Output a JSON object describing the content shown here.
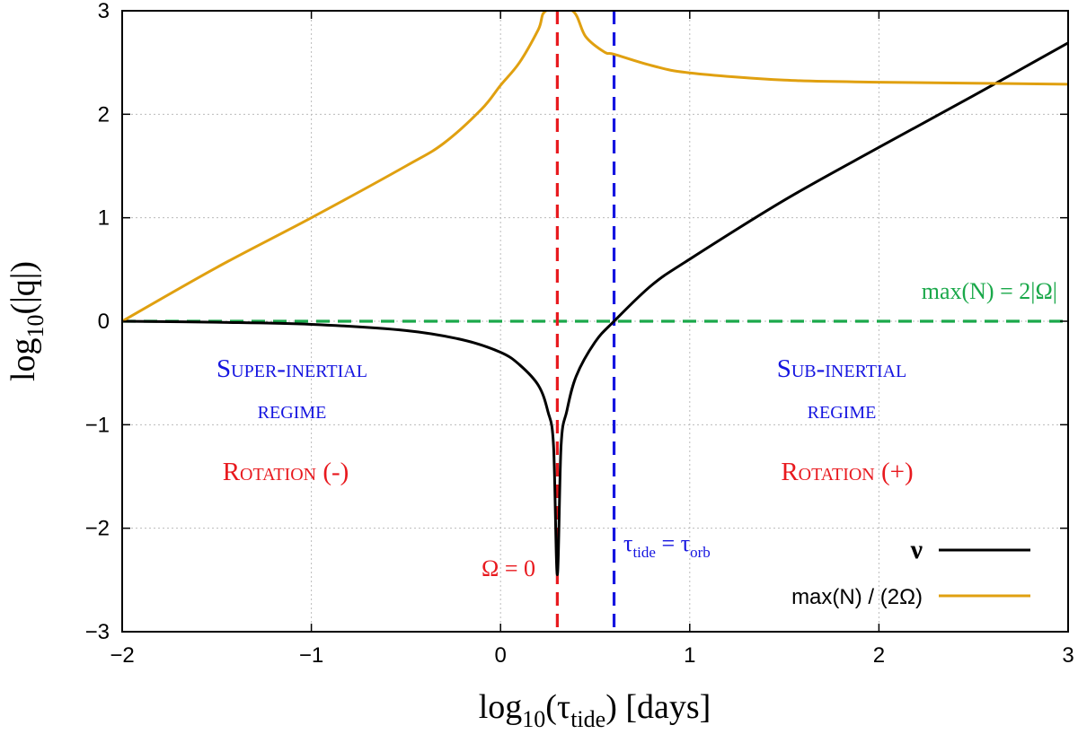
{
  "chart_data": {
    "type": "line",
    "title": "",
    "xlabel": {
      "base": "log",
      "sub": "10",
      "mid": "(τ",
      "sub2": "tide",
      "tail": ") [days]"
    },
    "ylabel": {
      "base": "log",
      "sub": "10",
      "tail": "(|q|)"
    },
    "xlim": [
      -2,
      3
    ],
    "ylim": [
      -3,
      3
    ],
    "xticks": [
      -2,
      -1,
      0,
      1,
      2,
      3
    ],
    "yticks": [
      -3,
      -2,
      -1,
      0,
      1,
      2,
      3
    ],
    "xtick_labels": [
      "−2",
      "−1",
      "0",
      "1",
      "2",
      "3"
    ],
    "ytick_labels": [
      "−3",
      "−2",
      "−1",
      "0",
      "1",
      "2",
      "3"
    ],
    "grid": true,
    "legend_position": "bottom-right",
    "series": [
      {
        "name": "ν",
        "color": "#000000",
        "x": [
          -2.0,
          -1.5,
          -1.0,
          -0.5,
          -0.2,
          0.0,
          0.1,
          0.2,
          0.25,
          0.28,
          0.3,
          0.32,
          0.35,
          0.4,
          0.5,
          0.6,
          0.8,
          1.0,
          1.5,
          2.0,
          2.5,
          3.0
        ],
        "y": [
          0.0,
          -0.01,
          -0.03,
          -0.09,
          -0.18,
          -0.3,
          -0.42,
          -0.62,
          -0.87,
          -1.2,
          -2.45,
          -1.2,
          -0.87,
          -0.53,
          -0.2,
          0.0,
          0.35,
          0.6,
          1.17,
          1.68,
          2.18,
          2.69
        ]
      },
      {
        "name": "max(N) / (2Ω)",
        "color": "#E0A010",
        "x": [
          -2.0,
          -1.5,
          -1.0,
          -0.5,
          -0.3,
          -0.1,
          0.0,
          0.1,
          0.2,
          0.24,
          0.38,
          0.45,
          0.55,
          0.6,
          0.8,
          1.0,
          1.5,
          2.0,
          2.5,
          3.0
        ],
        "y": [
          0.0,
          0.52,
          1.0,
          1.5,
          1.72,
          2.05,
          2.28,
          2.5,
          2.82,
          3.0,
          3.0,
          2.75,
          2.6,
          2.58,
          2.47,
          2.4,
          2.33,
          2.31,
          2.3,
          2.29
        ]
      }
    ],
    "reference_lines": [
      {
        "orientation": "horizontal",
        "value": 0.0,
        "color": "#1AA84A",
        "label": "max(N) = 2|Ω|"
      },
      {
        "orientation": "vertical",
        "value": 0.3,
        "color": "#E8191E",
        "label": "Ω = 0"
      },
      {
        "orientation": "vertical",
        "value": 0.6,
        "color": "#1515E0",
        "label_main": "τ",
        "label_sub1": "tide",
        "label_eq": " = τ",
        "label_sub2": "orb"
      }
    ],
    "annotations": {
      "super_inertial": {
        "line1": "Super-inertial",
        "line2": "regime",
        "color": "#1515E0"
      },
      "sub_inertial": {
        "line1": "Sub-inertial",
        "line2": "regime",
        "color": "#1515E0"
      },
      "rotation_neg": {
        "text": "Rotation (-)",
        "color": "#E8191E"
      },
      "rotation_pos": {
        "text": "Rotation (+)",
        "color": "#E8191E"
      }
    }
  }
}
